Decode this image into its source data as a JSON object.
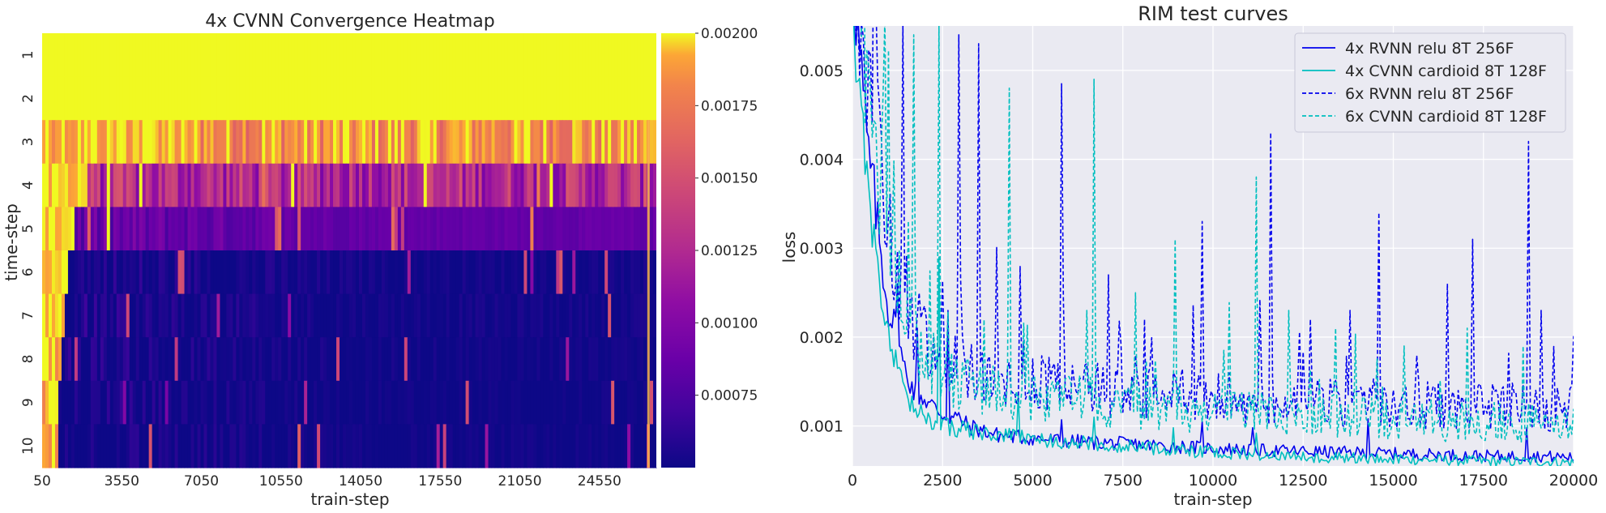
{
  "chart_data": [
    {
      "type": "heatmap",
      "title": "4x CVNN Convergence Heatmap",
      "xlabel": "train-step",
      "ylabel": "time-step",
      "x_ticks": [
        "50",
        "3550",
        "7050",
        "10550",
        "14050",
        "17550",
        "21050",
        "24550"
      ],
      "x_range": [
        50,
        27050
      ],
      "rows": [
        "1",
        "2",
        "3",
        "4",
        "5",
        "6",
        "7",
        "8",
        "9",
        "10"
      ],
      "colormap": "plasma",
      "color_range": [
        0.0005,
        0.002
      ],
      "colorbar_ticks": [
        "0.00200",
        "0.00175",
        "0.00150",
        "0.00125",
        "0.00100",
        "0.00075"
      ],
      "row_levels": [
        0.0021,
        0.0021,
        0.00185,
        0.00125,
        0.00085,
        0.00052,
        0.00052,
        0.00051,
        0.0005,
        0.0005
      ],
      "row_settle_step": [
        50,
        50,
        7050,
        2000,
        1500,
        1200,
        1000,
        900,
        800,
        700
      ]
    },
    {
      "type": "line",
      "title": "RIM test curves",
      "xlabel": "train-step",
      "ylabel": "loss",
      "xlim": [
        0,
        20000
      ],
      "ylim": [
        0.00055,
        0.0055
      ],
      "x_ticks": [
        "0",
        "2500",
        "5000",
        "7500",
        "10000",
        "12500",
        "15000",
        "17500",
        "20000"
      ],
      "y_ticks": [
        "0.001",
        "0.002",
        "0.003",
        "0.004",
        "0.005"
      ],
      "grid": true,
      "legend_position": "top-right",
      "series": [
        {
          "name": "4x RVNN relu 8T 256F",
          "color": "#0000ee",
          "dash": "solid",
          "points": [
            [
              0,
              0.0062
            ],
            [
              200,
              0.0052
            ],
            [
              400,
              0.0042
            ],
            [
              600,
              0.0036
            ],
            [
              800,
              0.0029
            ],
            [
              1000,
              0.0023
            ],
            [
              1200,
              0.0021
            ],
            [
              1400,
              0.0017
            ],
            [
              1700,
              0.0014
            ],
            [
              2000,
              0.0013
            ],
            [
              2300,
              0.0012
            ],
            [
              2600,
              0.0011
            ],
            [
              2900,
              0.0011
            ],
            [
              3200,
              0.001
            ],
            [
              3600,
              0.00095
            ],
            [
              4000,
              0.0009
            ],
            [
              4500,
              0.00088
            ],
            [
              5000,
              0.00086
            ],
            [
              6000,
              0.00083
            ],
            [
              7000,
              0.00081
            ],
            [
              8000,
              0.00079
            ],
            [
              9000,
              0.00077
            ],
            [
              10000,
              0.00075
            ],
            [
              11000,
              0.00073
            ],
            [
              12000,
              0.00072
            ],
            [
              13000,
              0.00071
            ],
            [
              14000,
              0.0007
            ],
            [
              15000,
              0.00069
            ],
            [
              16000,
              0.00068
            ],
            [
              17000,
              0.00067
            ],
            [
              18000,
              0.00066
            ],
            [
              19000,
              0.00066
            ],
            [
              20000,
              0.00065
            ]
          ],
          "spikes": [
            [
              1250,
              0.0026
            ],
            [
              1800,
              0.0021
            ],
            [
              2650,
              0.0023
            ],
            [
              5820,
              0.00107
            ],
            [
              9700,
              0.00105
            ],
            [
              11100,
              0.00098
            ],
            [
              14300,
              0.00108
            ],
            [
              18700,
              0.00098
            ]
          ]
        },
        {
          "name": "4x CVNN cardioid 8T 128F",
          "color": "#00bfbf",
          "dash": "solid",
          "points": [
            [
              0,
              0.0058
            ],
            [
              200,
              0.0048
            ],
            [
              400,
              0.0038
            ],
            [
              600,
              0.0031
            ],
            [
              800,
              0.0025
            ],
            [
              1000,
              0.002
            ],
            [
              1200,
              0.0017
            ],
            [
              1400,
              0.0014
            ],
            [
              1700,
              0.0012
            ],
            [
              2000,
              0.0011
            ],
            [
              2300,
              0.00105
            ],
            [
              2600,
              0.001
            ],
            [
              2900,
              0.00097
            ],
            [
              3200,
              0.00095
            ],
            [
              3600,
              0.00092
            ],
            [
              4000,
              0.0009
            ],
            [
              4500,
              0.00088
            ],
            [
              5000,
              0.00085
            ],
            [
              6000,
              0.00082
            ],
            [
              7000,
              0.00079
            ],
            [
              8000,
              0.00076
            ],
            [
              9000,
              0.00073
            ],
            [
              10000,
              0.0007
            ],
            [
              11000,
              0.00068
            ],
            [
              12000,
              0.00066
            ],
            [
              13000,
              0.00065
            ],
            [
              14000,
              0.00064
            ],
            [
              15000,
              0.00063
            ],
            [
              16000,
              0.00062
            ],
            [
              17000,
              0.00061
            ],
            [
              18000,
              0.0006
            ],
            [
              19000,
              0.0006
            ],
            [
              20000,
              0.00059
            ]
          ],
          "spikes": [
            [
              2380,
              0.0029
            ],
            [
              4600,
              0.00135
            ],
            [
              6700,
              0.0011
            ],
            [
              8900,
              0.00098
            ],
            [
              11200,
              0.00092
            ]
          ]
        },
        {
          "name": "6x RVNN relu 8T 256F",
          "color": "#0000ee",
          "dash": "dashed",
          "points": [
            [
              0,
              0.0068
            ],
            [
              200,
              0.006
            ],
            [
              400,
              0.0052
            ],
            [
              600,
              0.0045
            ],
            [
              800,
              0.0038
            ],
            [
              1000,
              0.0032
            ],
            [
              1200,
              0.0028
            ],
            [
              1400,
              0.0025
            ],
            [
              1700,
              0.0022
            ],
            [
              2000,
              0.002
            ],
            [
              2500,
              0.0018
            ],
            [
              3000,
              0.0017
            ],
            [
              3500,
              0.0016
            ],
            [
              4000,
              0.00155
            ],
            [
              5000,
              0.0015
            ],
            [
              6000,
              0.00145
            ],
            [
              7000,
              0.0014
            ],
            [
              8000,
              0.00138
            ],
            [
              9000,
              0.00135
            ],
            [
              10000,
              0.00133
            ],
            [
              11000,
              0.0013
            ],
            [
              12000,
              0.00128
            ],
            [
              13000,
              0.00127
            ],
            [
              14000,
              0.00126
            ],
            [
              15000,
              0.00125
            ],
            [
              16000,
              0.00124
            ],
            [
              17000,
              0.00123
            ],
            [
              18000,
              0.00122
            ],
            [
              19000,
              0.00121
            ],
            [
              20000,
              0.0012
            ]
          ],
          "spikes": [
            [
              650,
              0.0058
            ],
            [
              1400,
              0.0055
            ],
            [
              2950,
              0.0054
            ],
            [
              3500,
              0.0053
            ],
            [
              4650,
              0.0028
            ],
            [
              5800,
              0.00485
            ],
            [
              7100,
              0.0027
            ],
            [
              8100,
              0.0022
            ],
            [
              9700,
              0.0033
            ],
            [
              11600,
              0.0043
            ],
            [
              12700,
              0.0022
            ],
            [
              13800,
              0.0023
            ],
            [
              14600,
              0.0034
            ],
            [
              16500,
              0.0026
            ],
            [
              17200,
              0.0031
            ],
            [
              18750,
              0.0042
            ],
            [
              19100,
              0.0023
            ]
          ]
        },
        {
          "name": "6x CVNN cardioid 8T 128F",
          "color": "#00bfbf",
          "dash": "dashed",
          "points": [
            [
              0,
              0.0066
            ],
            [
              200,
              0.0058
            ],
            [
              400,
              0.005
            ],
            [
              600,
              0.0043
            ],
            [
              800,
              0.0036
            ],
            [
              1000,
              0.003
            ],
            [
              1200,
              0.0026
            ],
            [
              1400,
              0.0023
            ],
            [
              1700,
              0.002
            ],
            [
              2000,
              0.0018
            ],
            [
              2500,
              0.0016
            ],
            [
              3000,
              0.0015
            ],
            [
              3500,
              0.00145
            ],
            [
              4000,
              0.0014
            ],
            [
              5000,
              0.00135
            ],
            [
              6000,
              0.0013
            ],
            [
              7000,
              0.00127
            ],
            [
              8000,
              0.00123
            ],
            [
              9000,
              0.0012
            ],
            [
              10000,
              0.00118
            ],
            [
              11000,
              0.00116
            ],
            [
              12000,
              0.00114
            ],
            [
              13000,
              0.00112
            ],
            [
              14000,
              0.0011
            ],
            [
              15000,
              0.00108
            ],
            [
              16000,
              0.00106
            ],
            [
              17000,
              0.00105
            ],
            [
              18000,
              0.00104
            ],
            [
              19000,
              0.00103
            ],
            [
              20000,
              0.00102
            ]
          ],
          "spikes": [
            [
              900,
              0.0056
            ],
            [
              1700,
              0.0054
            ],
            [
              2400,
              0.0055
            ],
            [
              4350,
              0.0048
            ],
            [
              6700,
              0.0049
            ],
            [
              8950,
              0.0031
            ],
            [
              11200,
              0.0038
            ],
            [
              12100,
              0.0023
            ],
            [
              13400,
              0.0021
            ],
            [
              15300,
              0.0019
            ],
            [
              17050,
              0.0021
            ],
            [
              18600,
              0.0019
            ]
          ]
        }
      ]
    }
  ]
}
